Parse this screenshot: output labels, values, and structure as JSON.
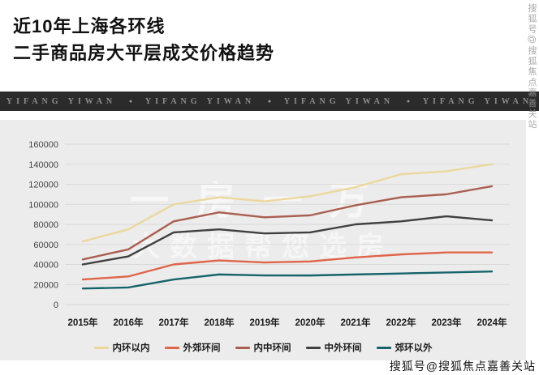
{
  "header": {
    "title_line1": "近10年上海各环线",
    "title_line2": "二手商品房大平层成交价格趋势"
  },
  "banner": {
    "brand_text": "YIFANG YIWAN",
    "repeat": 4,
    "separator": "●"
  },
  "watermarks": {
    "chart_line1": "一房一万",
    "chart_line2": "大数据帮您选房",
    "bottom_right": "搜狐号@搜狐焦点嘉善关站",
    "right_edge": "搜狐号@搜狐焦点嘉善关站"
  },
  "chart_data": {
    "type": "line",
    "title": "近10年上海各环线二手商品房大平层成交价格趋势",
    "categories": [
      "2015年",
      "2016年",
      "2017年",
      "2018年",
      "2019年",
      "2020年",
      "2021年",
      "2022年",
      "2023年",
      "2024年"
    ],
    "ylim": [
      0,
      160000
    ],
    "ytick_step": 20000,
    "grid": true,
    "legend_position": "bottom",
    "series": [
      {
        "name": "内环以内",
        "color": "#ecd89c",
        "values": [
          63000,
          75000,
          100000,
          107000,
          103000,
          108000,
          117000,
          130000,
          133000,
          140000
        ]
      },
      {
        "name": "外郊环间",
        "color": "#df6549",
        "values": [
          25000,
          28000,
          40000,
          44000,
          42000,
          43000,
          47000,
          50000,
          52000,
          52000
        ]
      },
      {
        "name": "内中环间",
        "color": "#a95f50",
        "values": [
          45000,
          55000,
          83000,
          92000,
          87000,
          89000,
          99000,
          107000,
          110000,
          118000
        ]
      },
      {
        "name": "中外环间",
        "color": "#404040",
        "values": [
          40000,
          48000,
          72000,
          75000,
          71000,
          72000,
          80000,
          83000,
          88000,
          84000
        ]
      },
      {
        "name": "郊环以外",
        "color": "#16646b",
        "values": [
          16000,
          17000,
          25000,
          30000,
          29000,
          29000,
          30000,
          31000,
          32000,
          33000
        ]
      }
    ]
  }
}
